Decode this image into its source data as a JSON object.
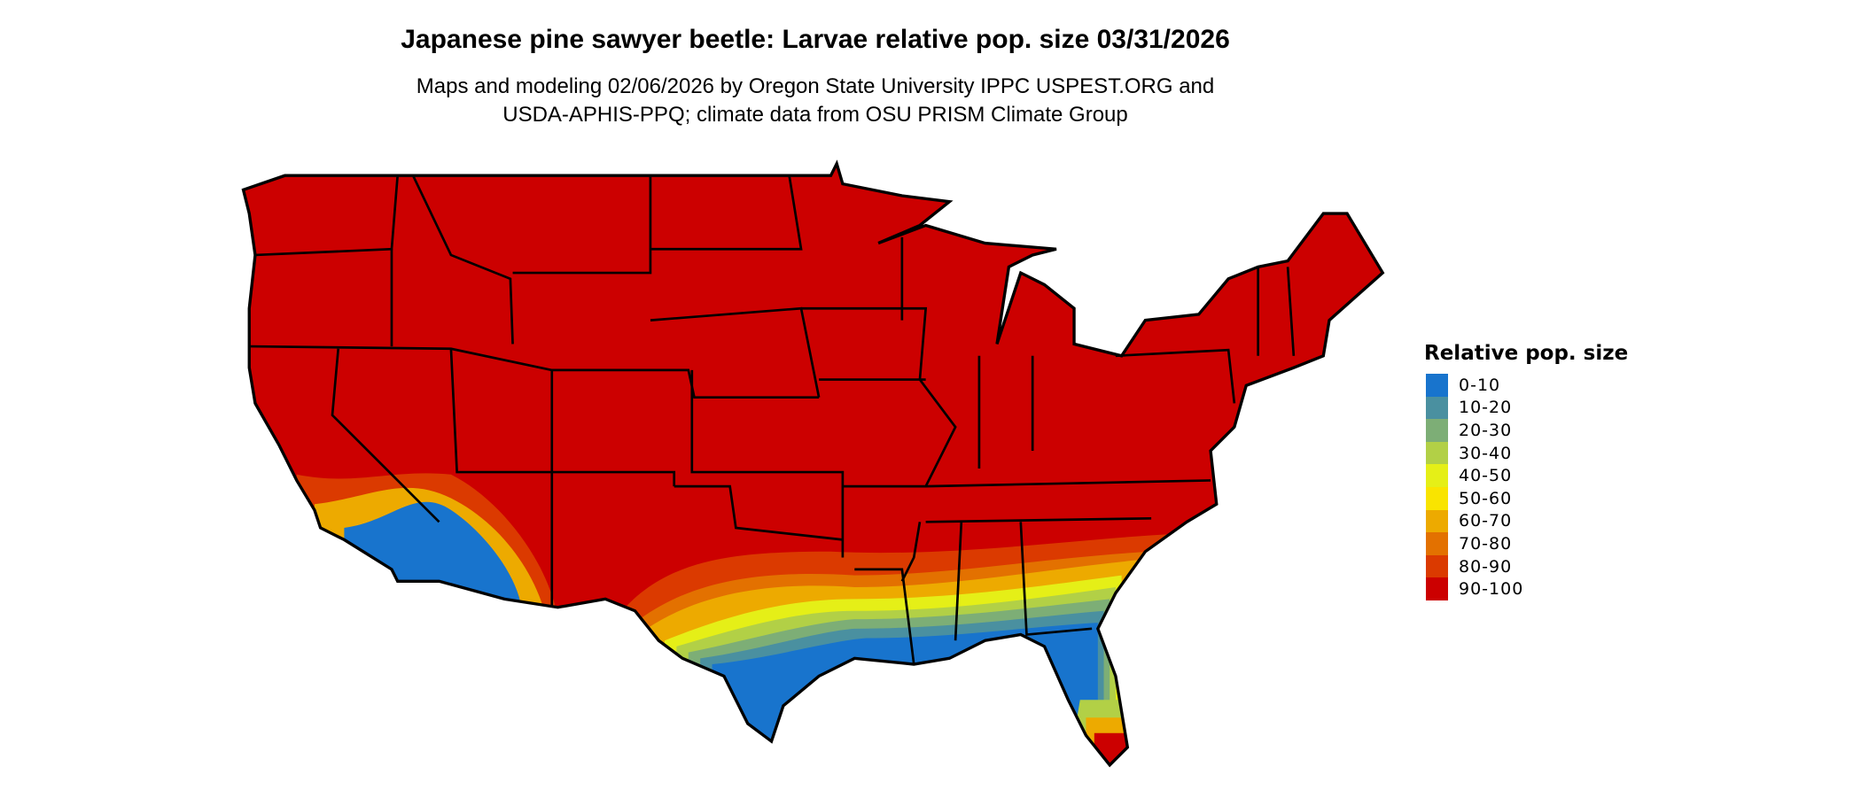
{
  "chart_data": {
    "type": "heatmap",
    "title": "Japanese pine sawyer beetle: Larvae relative pop. size 03/31/2026",
    "subtitle_lines": [
      "Maps and modeling 02/06/2026 by Oregon State University IPPC USPEST.ORG and",
      "USDA-APHIS-PPQ; climate data from OSU PRISM Climate Group"
    ],
    "legend": {
      "title": "Relative pop. size",
      "placement": "right",
      "items": [
        {
          "label": "0-10",
          "color": "#1874CD"
        },
        {
          "label": "10-20",
          "color": "#4A90A0"
        },
        {
          "label": "20-30",
          "color": "#7DAE76"
        },
        {
          "label": "30-40",
          "color": "#B2D046"
        },
        {
          "label": "40-50",
          "color": "#E5EF17"
        },
        {
          "label": "50-60",
          "color": "#F9E400"
        },
        {
          "label": "60-70",
          "color": "#EDAA00"
        },
        {
          "label": "70-80",
          "color": "#E37100"
        },
        {
          "label": "80-90",
          "color": "#DB3A00"
        },
        {
          "label": "90-100",
          "color": "#CC0000"
        }
      ]
    },
    "region": "Contiguous United States"
  }
}
